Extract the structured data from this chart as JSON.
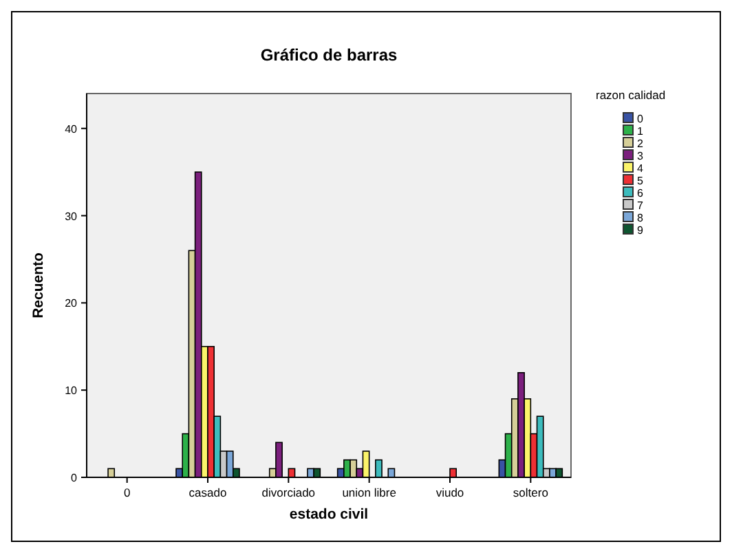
{
  "chart_data": {
    "type": "bar",
    "title": "Gráfico de barras",
    "xlabel": "estado civil",
    "ylabel": "Recuento",
    "legend_title": "razon  calidad",
    "legend": "right",
    "grid": false,
    "categories": [
      "0",
      "casado",
      "divorciado",
      "union libre",
      "viudo",
      "soltero"
    ],
    "ylim": [
      0,
      44
    ],
    "yticks": [
      0,
      10,
      20,
      30,
      40
    ],
    "series": [
      {
        "name": "0",
        "color": "#3953a4",
        "values": [
          null,
          1,
          null,
          1,
          null,
          2
        ]
      },
      {
        "name": "1",
        "color": "#2db14a",
        "values": [
          null,
          5,
          null,
          2,
          null,
          5
        ]
      },
      {
        "name": "2",
        "color": "#d6cf98",
        "values": [
          1,
          26,
          1,
          2,
          null,
          9
        ]
      },
      {
        "name": "3",
        "color": "#7b1f7d",
        "values": [
          null,
          35,
          4,
          1,
          null,
          12
        ]
      },
      {
        "name": "4",
        "color": "#fbf46a",
        "values": [
          null,
          15,
          null,
          3,
          null,
          9
        ]
      },
      {
        "name": "5",
        "color": "#ee3034",
        "values": [
          null,
          15,
          1,
          null,
          1,
          5
        ]
      },
      {
        "name": "6",
        "color": "#3dbcbd",
        "values": [
          null,
          7,
          null,
          2,
          null,
          7
        ]
      },
      {
        "name": "7",
        "color": "#c9c9c9",
        "values": [
          null,
          3,
          null,
          null,
          null,
          1
        ]
      },
      {
        "name": "8",
        "color": "#7ba7d8",
        "values": [
          null,
          3,
          1,
          1,
          null,
          1
        ]
      },
      {
        "name": "9",
        "color": "#0e5530",
        "values": [
          null,
          1,
          1,
          null,
          null,
          1
        ]
      }
    ]
  }
}
